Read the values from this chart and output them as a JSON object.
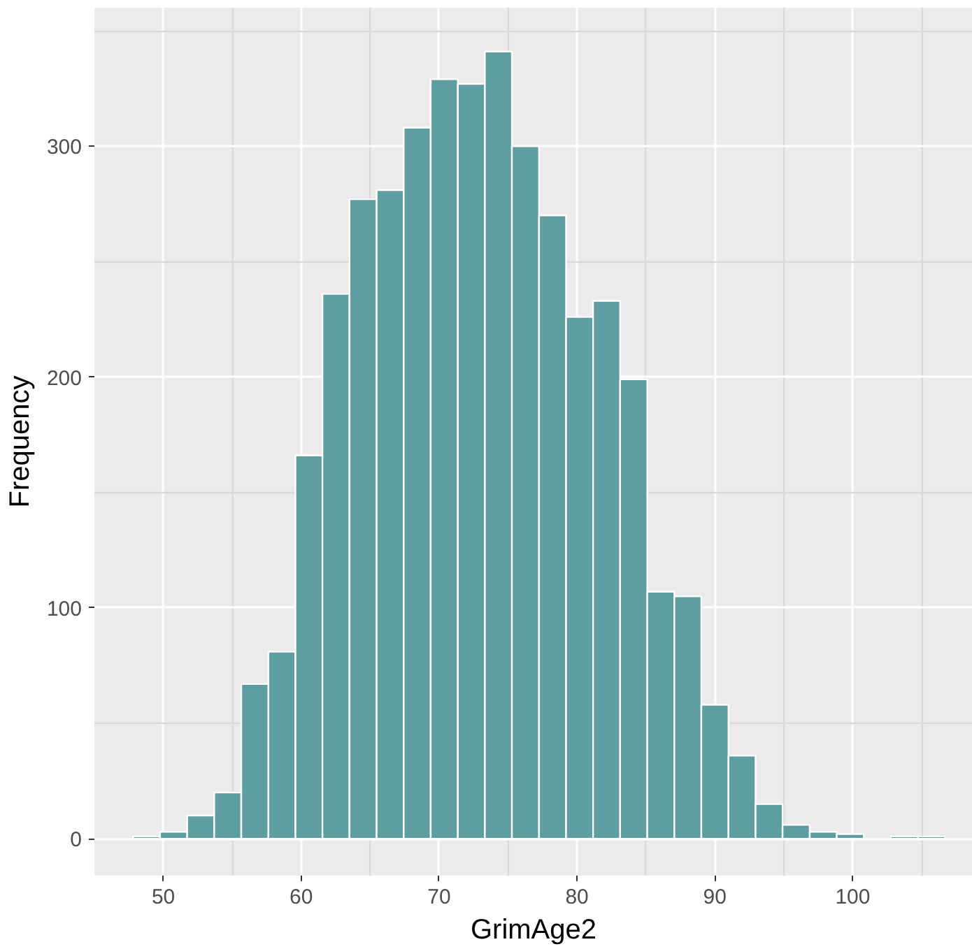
{
  "chart_data": {
    "type": "histogram",
    "xlabel": "GrimAge2",
    "ylabel": "Frequency",
    "color": "#5f9ea0",
    "bins": [
      47.8,
      49.76,
      51.73,
      53.69,
      55.65,
      57.62,
      59.58,
      61.54,
      63.5,
      65.47,
      67.43,
      69.39,
      71.36,
      73.32,
      75.28,
      77.25,
      79.21,
      81.17,
      83.13,
      85.1,
      87.06,
      89.02,
      90.99,
      92.95,
      94.91,
      96.88,
      98.84,
      100.8,
      102.76,
      104.73,
      106.69
    ],
    "values": [
      1,
      3,
      10,
      20,
      67,
      81,
      166,
      236,
      277,
      281,
      308,
      329,
      327,
      341,
      300,
      270,
      226,
      233,
      199,
      107,
      105,
      58,
      36,
      15,
      6,
      3,
      2,
      0,
      1,
      1
    ],
    "xlim": [
      45,
      108.7
    ],
    "ylim": [
      -16,
      360
    ],
    "xticks": [
      50,
      60,
      70,
      80,
      90,
      100
    ],
    "yticks": [
      0,
      100,
      200,
      300
    ],
    "grid": true
  }
}
